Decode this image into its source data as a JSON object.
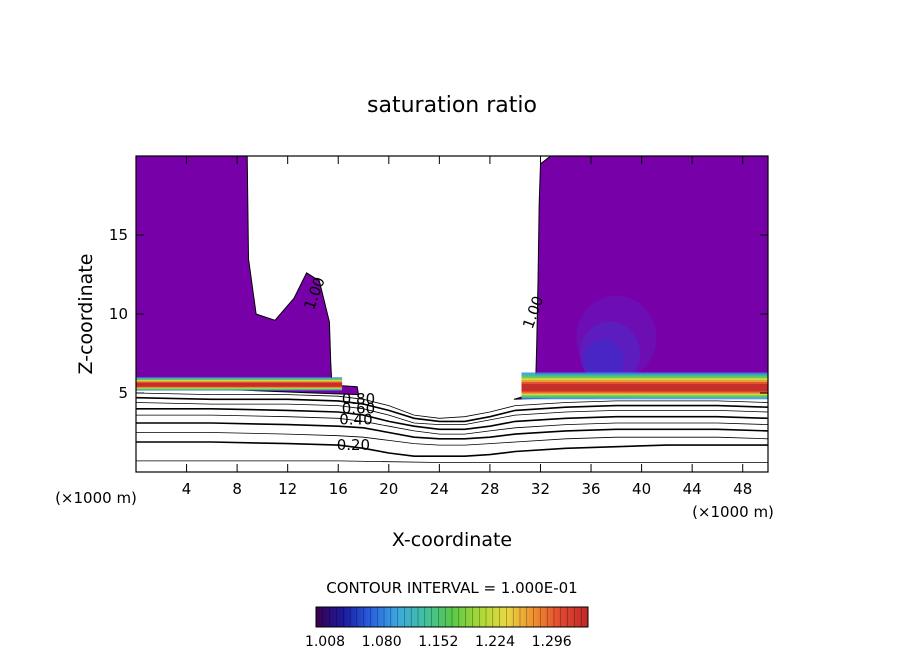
{
  "chart_data": {
    "type": "heatmap",
    "subtype": "filled-contour",
    "title": "saturation ratio",
    "xlabel": "X-coordinate",
    "ylabel": "Z-coordinate",
    "x_unit_left": "(×1000 m)",
    "x_unit_right": "(×1000 m)",
    "xlim": [
      0,
      50
    ],
    "ylim": [
      0,
      20
    ],
    "x_ticks": [
      4,
      8,
      12,
      16,
      20,
      24,
      28,
      32,
      36,
      40,
      44,
      48
    ],
    "y_ticks": [
      5,
      10,
      15
    ],
    "contour_interval_label": "CONTOUR INTERVAL = 1.000E-01",
    "contour_line_labels": [
      {
        "text": "1.00",
        "x": 14.5,
        "y": 11.2
      },
      {
        "text": "1.00",
        "x": 31.8,
        "y": 10.0
      },
      {
        "text": "0.80",
        "x": 17.6,
        "y": 4.3
      },
      {
        "text": "0.60",
        "x": 17.6,
        "y": 3.7
      },
      {
        "text": "0.40",
        "x": 17.4,
        "y": 3.0
      },
      {
        "text": "0.20",
        "x": 17.2,
        "y": 1.4
      }
    ],
    "colorbar": {
      "tick_labels": [
        "1.008",
        "1.080",
        "1.152",
        "1.224",
        "1.296"
      ],
      "colors": [
        "#3c0050",
        "#1a1a9e",
        "#2860e0",
        "#3ca8e0",
        "#40c0a0",
        "#58c848",
        "#a8d838",
        "#e8d840",
        "#f09030",
        "#e04830",
        "#c02828"
      ]
    },
    "supersaturated_region_left": [
      [
        0,
        5.2
      ],
      [
        0,
        20
      ],
      [
        8.8,
        20
      ],
      [
        8.9,
        13.5
      ],
      [
        9.5,
        10
      ],
      [
        11,
        9.6
      ],
      [
        12.5,
        11
      ],
      [
        13.5,
        12.6
      ],
      [
        14.5,
        12.1
      ],
      [
        15.3,
        9.5
      ],
      [
        15.4,
        7
      ],
      [
        15.5,
        5.5
      ],
      [
        17.5,
        5.4
      ],
      [
        17.6,
        4.9
      ],
      [
        14,
        5.0
      ],
      [
        5,
        5.3
      ]
    ],
    "supersaturated_region_right": [
      [
        29.9,
        4.6
      ],
      [
        31.6,
        5.0
      ],
      [
        31.7,
        8
      ],
      [
        31.8,
        12
      ],
      [
        31.9,
        17
      ],
      [
        32,
        19.5
      ],
      [
        32.8,
        20
      ],
      [
        50,
        20
      ],
      [
        50,
        5.4
      ],
      [
        47,
        5.2
      ],
      [
        44,
        5.0
      ],
      [
        40,
        4.8
      ],
      [
        36,
        4.7
      ],
      [
        33,
        4.7
      ]
    ],
    "high_value_bands": [
      {
        "x": [
          0,
          16.3
        ],
        "y": [
          5.15,
          6.0
        ],
        "peak": 1.3
      },
      {
        "x": [
          30.5,
          50
        ],
        "y": [
          4.6,
          6.3
        ],
        "peak": 1.3
      }
    ],
    "subsaturated_contours": [
      {
        "level": 0.9,
        "points": [
          [
            0,
            5.0
          ],
          [
            6,
            4.9
          ],
          [
            12,
            4.9
          ],
          [
            16,
            4.8
          ],
          [
            18,
            4.6
          ],
          [
            20,
            4.2
          ],
          [
            22,
            3.6
          ],
          [
            24,
            3.4
          ],
          [
            26,
            3.5
          ],
          [
            28,
            3.8
          ],
          [
            30,
            4.2
          ],
          [
            34,
            4.4
          ],
          [
            38,
            4.5
          ],
          [
            42,
            4.5
          ],
          [
            46,
            4.5
          ],
          [
            50,
            4.4
          ]
        ]
      },
      {
        "level": 0.8,
        "points": [
          [
            0,
            4.7
          ],
          [
            6,
            4.6
          ],
          [
            12,
            4.6
          ],
          [
            16,
            4.5
          ],
          [
            18,
            4.3
          ],
          [
            20,
            3.9
          ],
          [
            22,
            3.4
          ],
          [
            24,
            3.2
          ],
          [
            26,
            3.2
          ],
          [
            28,
            3.5
          ],
          [
            30,
            3.9
          ],
          [
            34,
            4.1
          ],
          [
            38,
            4.2
          ],
          [
            42,
            4.2
          ],
          [
            46,
            4.2
          ],
          [
            50,
            4.1
          ]
        ]
      },
      {
        "level": 0.7,
        "points": [
          [
            0,
            4.4
          ],
          [
            6,
            4.3
          ],
          [
            12,
            4.3
          ],
          [
            16,
            4.2
          ],
          [
            18,
            4.0
          ],
          [
            20,
            3.6
          ],
          [
            22,
            3.1
          ],
          [
            24,
            3.0
          ],
          [
            26,
            3.0
          ],
          [
            28,
            3.3
          ],
          [
            30,
            3.6
          ],
          [
            34,
            3.8
          ],
          [
            38,
            3.9
          ],
          [
            42,
            3.9
          ],
          [
            46,
            3.9
          ],
          [
            50,
            3.8
          ]
        ]
      },
      {
        "level": 0.6,
        "points": [
          [
            0,
            4.0
          ],
          [
            6,
            4.0
          ],
          [
            12,
            3.9
          ],
          [
            16,
            3.8
          ],
          [
            18,
            3.6
          ],
          [
            20,
            3.2
          ],
          [
            22,
            2.9
          ],
          [
            24,
            2.7
          ],
          [
            26,
            2.7
          ],
          [
            28,
            2.9
          ],
          [
            30,
            3.2
          ],
          [
            34,
            3.4
          ],
          [
            38,
            3.5
          ],
          [
            42,
            3.5
          ],
          [
            46,
            3.5
          ],
          [
            50,
            3.4
          ]
        ]
      },
      {
        "level": 0.5,
        "points": [
          [
            0,
            3.6
          ],
          [
            6,
            3.6
          ],
          [
            12,
            3.5
          ],
          [
            16,
            3.4
          ],
          [
            18,
            3.2
          ],
          [
            20,
            2.9
          ],
          [
            22,
            2.6
          ],
          [
            24,
            2.4
          ],
          [
            26,
            2.4
          ],
          [
            28,
            2.6
          ],
          [
            30,
            2.8
          ],
          [
            34,
            3.0
          ],
          [
            38,
            3.1
          ],
          [
            42,
            3.1
          ],
          [
            46,
            3.1
          ],
          [
            50,
            3.0
          ]
        ]
      },
      {
        "level": 0.4,
        "points": [
          [
            0,
            3.1
          ],
          [
            6,
            3.1
          ],
          [
            12,
            3.0
          ],
          [
            16,
            2.9
          ],
          [
            18,
            2.8
          ],
          [
            20,
            2.5
          ],
          [
            22,
            2.2
          ],
          [
            24,
            2.1
          ],
          [
            26,
            2.1
          ],
          [
            28,
            2.2
          ],
          [
            30,
            2.4
          ],
          [
            34,
            2.6
          ],
          [
            38,
            2.7
          ],
          [
            42,
            2.7
          ],
          [
            46,
            2.7
          ],
          [
            50,
            2.6
          ]
        ]
      },
      {
        "level": 0.3,
        "points": [
          [
            0,
            2.5
          ],
          [
            6,
            2.5
          ],
          [
            12,
            2.4
          ],
          [
            16,
            2.3
          ],
          [
            18,
            2.2
          ],
          [
            20,
            2.0
          ],
          [
            22,
            1.8
          ],
          [
            24,
            1.7
          ],
          [
            26,
            1.7
          ],
          [
            28,
            1.8
          ],
          [
            30,
            1.9
          ],
          [
            34,
            2.1
          ],
          [
            38,
            2.2
          ],
          [
            42,
            2.2
          ],
          [
            46,
            2.2
          ],
          [
            50,
            2.1
          ]
        ]
      },
      {
        "level": 0.2,
        "points": [
          [
            0,
            1.9
          ],
          [
            6,
            1.9
          ],
          [
            12,
            1.8
          ],
          [
            16,
            1.7
          ],
          [
            18,
            1.5
          ],
          [
            20,
            1.2
          ],
          [
            22,
            1.0
          ],
          [
            24,
            1.0
          ],
          [
            26,
            1.0
          ],
          [
            28,
            1.1
          ],
          [
            30,
            1.3
          ],
          [
            34,
            1.5
          ],
          [
            38,
            1.6
          ],
          [
            42,
            1.7
          ],
          [
            46,
            1.7
          ],
          [
            50,
            1.7
          ]
        ]
      },
      {
        "level": 0.1,
        "points": [
          [
            0,
            0.7
          ],
          [
            8,
            0.7
          ],
          [
            16,
            0.7
          ],
          [
            24,
            0.6
          ],
          [
            32,
            0.6
          ],
          [
            40,
            0.6
          ],
          [
            50,
            0.6
          ]
        ]
      }
    ]
  }
}
